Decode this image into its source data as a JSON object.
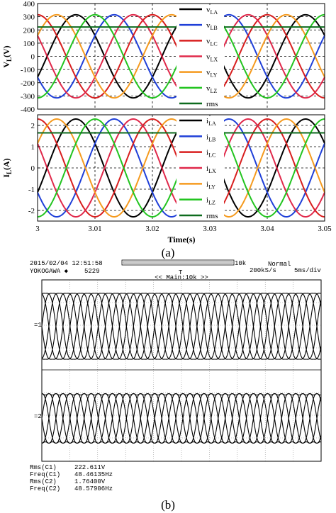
{
  "caption_a": "(a)",
  "caption_b": "(b)",
  "chart_data": [
    {
      "type": "line",
      "panel": "voltage",
      "ylabel_main": "V",
      "ylabel_sub": "L",
      "ylabel_unit": "(V)",
      "xlabel": "",
      "xlim": [
        3.0,
        3.05
      ],
      "ylim": [
        -400,
        400
      ],
      "yticks": [
        "400",
        "300",
        "200",
        "100",
        "0",
        "-100",
        "-200",
        "-300",
        "-400"
      ],
      "grid": true,
      "legend_position": "right",
      "waveform": {
        "amplitude": 315,
        "frequency_hz": 50,
        "segment_x": [
          [
            3.0,
            3.025
          ],
          [
            3.0315,
            3.05
          ]
        ]
      },
      "rms_value": 222,
      "series": [
        {
          "name": "v",
          "sub": "LA",
          "color": "#000000",
          "phase_deg": -30
        },
        {
          "name": "v",
          "sub": "LB",
          "color": "#1f3fd8",
          "phase_deg": -150
        },
        {
          "name": "v",
          "sub": "LC",
          "color": "#d81e1e",
          "phase_deg": 90
        },
        {
          "name": "v",
          "sub": "LX",
          "color": "#e0284a",
          "phase_deg": 150
        },
        {
          "name": "v",
          "sub": "LY",
          "color": "#f59a1e",
          "phase_deg": 30
        },
        {
          "name": "v",
          "sub": "LZ",
          "color": "#22c41f",
          "phase_deg": -90
        },
        {
          "name": "rms",
          "sub": "",
          "color": "#0d6b1d"
        }
      ]
    },
    {
      "type": "line",
      "panel": "current",
      "ylabel_main": "I",
      "ylabel_sub": "L",
      "ylabel_unit": "(A)",
      "xlabel": "Time(s)",
      "xlim": [
        3.0,
        3.05
      ],
      "ylim": [
        -2.5,
        2.5
      ],
      "yticks": [
        "2",
        "1",
        "0",
        "-1",
        "-2"
      ],
      "xticks": [
        "3",
        "3.01",
        "3.02",
        "3.03",
        "3.04",
        "3.05"
      ],
      "grid": true,
      "legend_position": "right",
      "waveform": {
        "amplitude": 2.3,
        "frequency_hz": 50,
        "segment_x": [
          [
            3.0,
            3.025
          ],
          [
            3.0315,
            3.05
          ]
        ]
      },
      "rms_value": 1.65,
      "series": [
        {
          "name": "i",
          "sub": "LA",
          "color": "#000000",
          "phase_deg": -30
        },
        {
          "name": "i",
          "sub": "LB",
          "color": "#1f3fd8",
          "phase_deg": -150
        },
        {
          "name": "i",
          "sub": "LC",
          "color": "#d81e1e",
          "phase_deg": 90
        },
        {
          "name": "i",
          "sub": "LX",
          "color": "#e0284a",
          "phase_deg": 150
        },
        {
          "name": "i",
          "sub": "LY",
          "color": "#f59a1e",
          "phase_deg": 30
        },
        {
          "name": "i",
          "sub": "LZ",
          "color": "#22c41f",
          "phase_deg": -90
        },
        {
          "name": "rms",
          "sub": "",
          "color": "#0d6b1d"
        }
      ]
    },
    {
      "type": "line",
      "panel": "oscilloscope",
      "header": {
        "date_time": "2015/02/04  12:51:58",
        "brand": "YOKOGAWA ◆",
        "record": "5229",
        "mode": "Normal",
        "sample_rate": "200kS/s",
        "time_div": "5ms/div",
        "zoom": "<< Main:10k >>",
        "bar_end": "10k"
      },
      "waveform": {
        "traces": 6,
        "cycles": 6.6
      },
      "measurements": [
        {
          "label": "Rms(C1)",
          "value": "222.611V"
        },
        {
          "label": "Freq(C1)",
          "value": "48.46135Hz"
        },
        {
          "label": "Rms(C2)",
          "value": "1.76400V"
        },
        {
          "label": "Freq(C2)",
          "value": "48.57906Hz"
        }
      ]
    }
  ]
}
